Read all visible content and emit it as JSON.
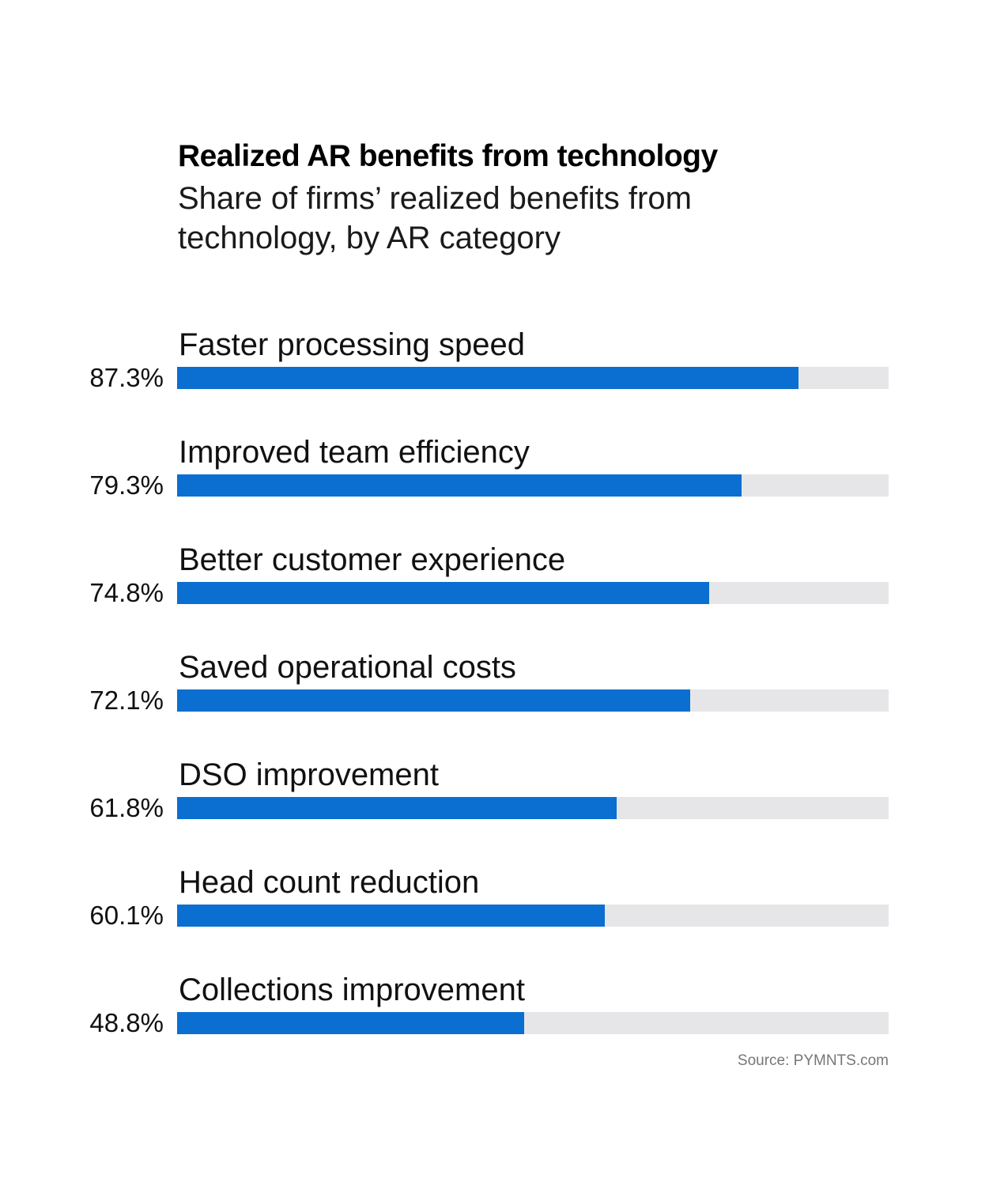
{
  "chart_data": {
    "type": "bar",
    "orientation": "horizontal",
    "title": "Realized AR benefits from technology",
    "subtitle": "Share of firms’ realized benefits from technology, by AR category",
    "categories": [
      "Faster processing speed",
      "Improved team efficiency",
      "Better customer experience",
      "Saved operational costs",
      "DSO improvement",
      "Head count reduction",
      "Collections improvement"
    ],
    "values": [
      87.3,
      79.3,
      74.8,
      72.1,
      61.8,
      60.1,
      48.8
    ],
    "value_labels": [
      "87.3%",
      "79.3%",
      "74.8%",
      "72.1%",
      "61.8%",
      "60.1%",
      "48.8%"
    ],
    "xlim": [
      0,
      100
    ],
    "unit": "%",
    "xlabel": "",
    "ylabel": "",
    "grid": false,
    "legend": "none",
    "source": "Source: PYMNTS.com",
    "colors": {
      "bar": "#0a6fd0",
      "track": "#e6e6e8"
    }
  }
}
